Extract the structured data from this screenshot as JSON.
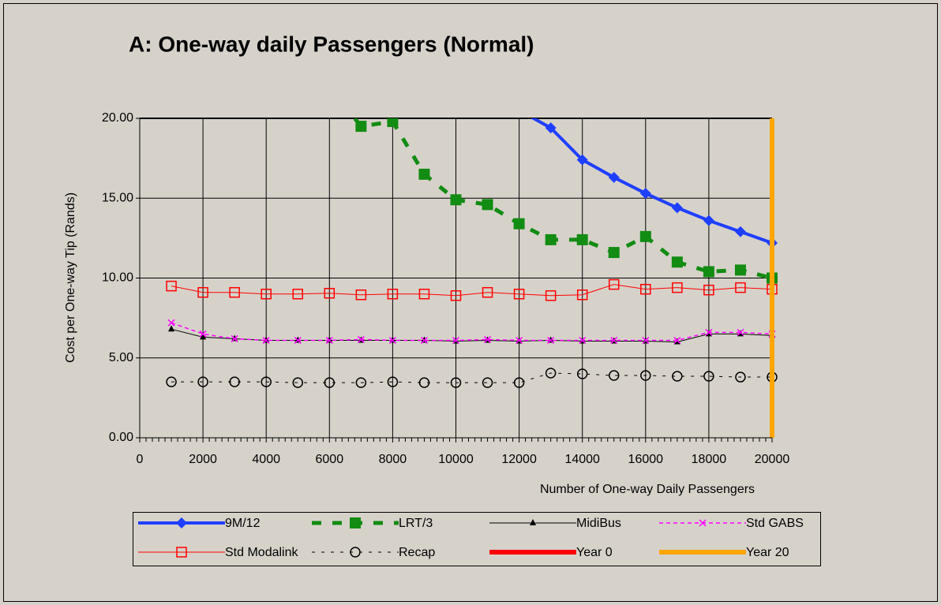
{
  "chart_data": {
    "type": "line",
    "title": "A: One-way daily Passengers (Normal)",
    "x_label": "Number of One-way Daily Passengers",
    "y_label": "Cost per One-way Tip (Rands)",
    "x": [
      1000,
      2000,
      3000,
      4000,
      5000,
      6000,
      7000,
      8000,
      9000,
      10000,
      11000,
      12000,
      13000,
      14000,
      15000,
      16000,
      17000,
      18000,
      19000,
      20000
    ],
    "series": [
      {
        "name": "9M/12",
        "color": "#1f3fff",
        "width": 4,
        "dash": "none",
        "marker": "diamond",
        "values": [
          null,
          null,
          null,
          null,
          null,
          null,
          null,
          null,
          null,
          null,
          null,
          20.5,
          19.4,
          17.4,
          16.3,
          15.3,
          14.4,
          13.6,
          12.9,
          12.2
        ]
      },
      {
        "name": "LRT/3",
        "color": "#128c12",
        "width": 5,
        "dash": "12 14",
        "marker": "square",
        "values": [
          null,
          null,
          null,
          null,
          null,
          22.0,
          19.5,
          19.8,
          16.5,
          14.9,
          14.6,
          13.4,
          12.4,
          12.4,
          11.6,
          12.6,
          11.0,
          10.4,
          10.5,
          10.0
        ]
      },
      {
        "name": "MidiBus",
        "color": "#000000",
        "width": 1,
        "dash": "none",
        "marker": "triangle",
        "values": [
          6.8,
          6.3,
          6.2,
          6.1,
          6.1,
          6.1,
          6.1,
          6.1,
          6.1,
          6.05,
          6.1,
          6.05,
          6.1,
          6.05,
          6.05,
          6.05,
          6.0,
          6.5,
          6.5,
          6.4
        ]
      },
      {
        "name": "Std GABS",
        "color": "#ff00ff",
        "width": 1.5,
        "dash": "5 4",
        "marker": "x",
        "values": [
          7.2,
          6.5,
          6.2,
          6.1,
          6.1,
          6.1,
          6.15,
          6.1,
          6.1,
          6.1,
          6.15,
          6.1,
          6.1,
          6.1,
          6.1,
          6.1,
          6.1,
          6.6,
          6.6,
          6.5
        ]
      },
      {
        "name": "Std Modalink",
        "color": "#ff0000",
        "width": 1,
        "dash": "none",
        "marker": "open-square",
        "values": [
          9.5,
          9.1,
          9.1,
          9.0,
          9.0,
          9.05,
          8.95,
          9.0,
          9.0,
          8.9,
          9.1,
          9.0,
          8.9,
          8.95,
          9.6,
          9.3,
          9.4,
          9.25,
          9.4,
          9.3
        ]
      },
      {
        "name": "Recap",
        "color": "#000000",
        "width": 1,
        "dash": "4 8",
        "marker": "circle",
        "values": [
          3.5,
          3.5,
          3.5,
          3.5,
          3.45,
          3.45,
          3.45,
          3.5,
          3.45,
          3.45,
          3.45,
          3.45,
          4.05,
          4.0,
          3.9,
          3.9,
          3.85,
          3.85,
          3.8,
          3.8
        ]
      }
    ],
    "vlines": [
      {
        "name": "Year 0",
        "color": "#ff0000",
        "x": 20000
      },
      {
        "name": "Year 20",
        "color": "#ffa500",
        "x": 20000
      }
    ],
    "xlim": [
      0,
      20000
    ],
    "xticks": [
      0,
      2000,
      4000,
      6000,
      8000,
      10000,
      12000,
      14000,
      16000,
      18000,
      20000
    ],
    "ylim": [
      0,
      20
    ],
    "yticks": [
      {
        "value": 0,
        "label": "0.00"
      },
      {
        "value": 5,
        "label": "5.00"
      },
      {
        "value": 10,
        "label": "10.00"
      },
      {
        "value": 15,
        "label": "15.00"
      },
      {
        "value": 20,
        "label": "20.00"
      }
    ],
    "grid": true
  }
}
